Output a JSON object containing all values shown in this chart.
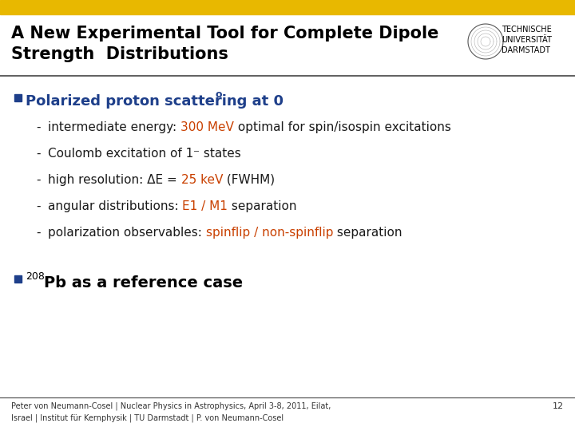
{
  "bg_color": "#ffffff",
  "top_bar_color": "#e8b800",
  "title_line1": "A New Experimental Tool for Complete Dipole",
  "title_line2": "Strength  Distributions",
  "title_color": "#000000",
  "title_fontsize": 15,
  "bullet_color": "#1e3f8a",
  "orange_color": "#c94000",
  "black_color": "#1a1a1a",
  "sub_fontsize": 11,
  "bullet1_fontsize": 13,
  "bullet2_fontsize": 14,
  "footer_text_line1": "Peter von Neumann-Cosel | Nuclear Physics in Astrophysics, April 3-8, 2011, Eilat,",
  "footer_text_line2": "Israel | Institut für Kernphysik | TU Darmstadt | P. von Neumann-Cosel",
  "footer_fontsize": 7,
  "page_number": "12",
  "tud_text": "TECHNISCHE\nUNIVERSITÄT\nDARMSTADT",
  "tud_fontsize": 7
}
